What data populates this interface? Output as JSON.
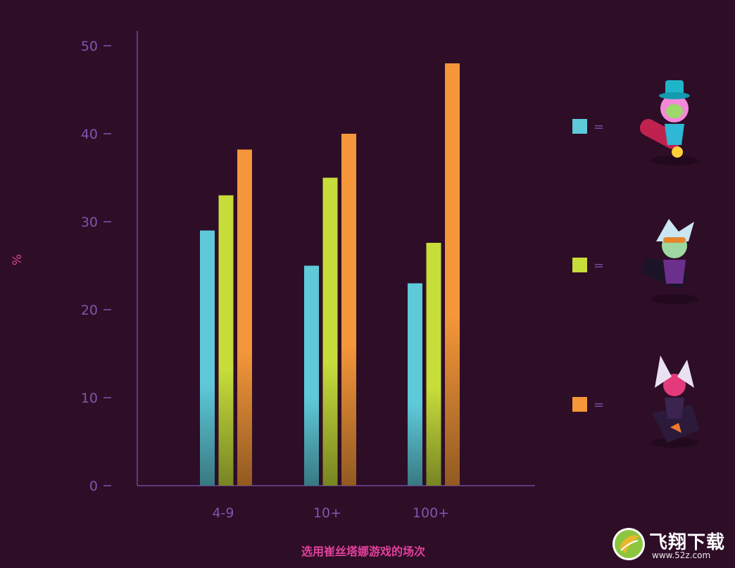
{
  "chart_data": {
    "type": "bar",
    "categories": [
      "4-9",
      "10+",
      "100+"
    ],
    "series": [
      {
        "values": [
          29,
          25,
          23
        ]
      },
      {
        "values": [
          33,
          35,
          27.6
        ]
      },
      {
        "values": [
          38.2,
          40,
          48
        ]
      }
    ],
    "colors": [
      "#5ec9d9",
      "#c6dd3a",
      "#f49639"
    ],
    "xlabel": "选用崔丝塔娜游戏的场次",
    "ylabel": "%",
    "ylim": [
      0,
      50
    ],
    "yticks": [
      "0",
      "10",
      "20",
      "30",
      "40",
      "50"
    ],
    "legend_placement": "right",
    "legend_symbol": "=",
    "grid": false
  },
  "legend_icons": [
    "tristana-candy-skin-icon",
    "tristana-rocket-girl-skin-icon",
    "tristana-demon-skin-icon"
  ],
  "watermark": {
    "logo_text": "飞翔下载",
    "url": "www.52z.com",
    "icon": "leaf-globe-icon"
  }
}
